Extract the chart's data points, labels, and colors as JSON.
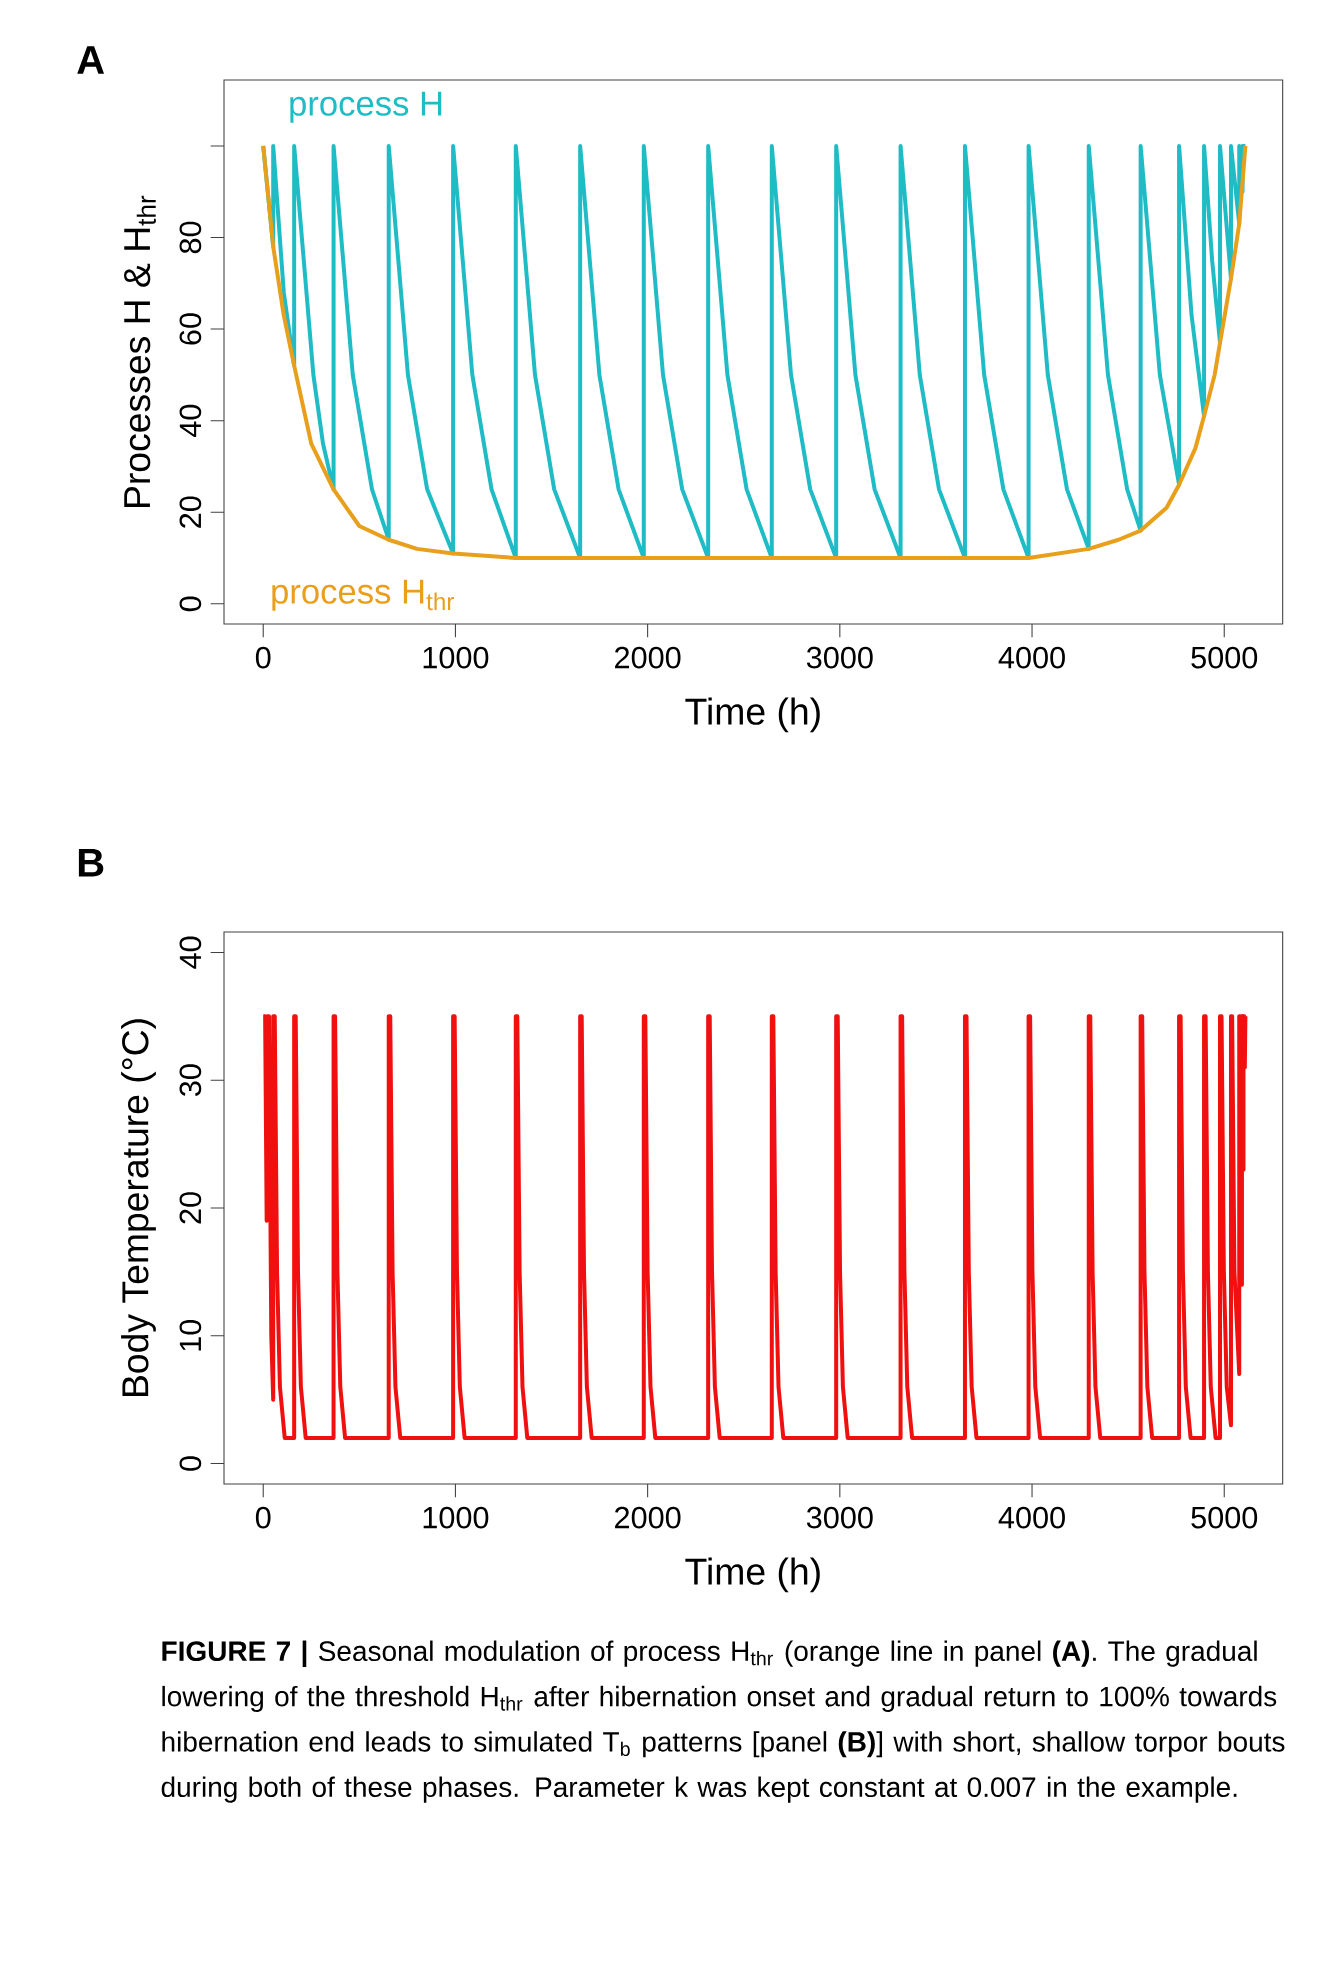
{
  "chart_data": [
    {
      "type": "line",
      "title": "A",
      "xlabel": "Time (h)",
      "ylabel": "Processes H & H$_{thr}$",
      "xlim": [
        -204,
        5304
      ],
      "xticks": [
        0,
        1000,
        2000,
        3000,
        4000,
        5000
      ],
      "ylim": [
        -4.4,
        114.4
      ],
      "yticks": [
        0,
        20,
        40,
        60,
        80,
        {
          "value": 100,
          "label": null
        }
      ],
      "series": [
        {
          "name": "process H",
          "color": "#1fbcc6",
          "x": [
            0,
            52,
            52,
            107,
            161,
            161,
            261,
            311,
            366,
            366,
            466,
            566,
            653,
            653,
            753,
            853,
            988,
            988,
            1088,
            1188,
            1314,
            1314,
            1414,
            1514,
            1649,
            1649,
            1749,
            1849,
            1980,
            1980,
            2080,
            2180,
            2315,
            2315,
            2415,
            2515,
            2646,
            2646,
            2746,
            2846,
            2981,
            2981,
            3081,
            3181,
            3316,
            3316,
            3416,
            3516,
            3651,
            3651,
            3751,
            3851,
            3982,
            3982,
            4082,
            4182,
            4295,
            4295,
            4395,
            4495,
            4565,
            4565,
            4665,
            4765,
            4765,
            4830,
            4895,
            4895,
            4937,
            4978,
            4978,
            5035,
            5035,
            5078,
            5078,
            5095,
            5095,
            5110
          ],
          "values": [
            100,
            78,
            100,
            68,
            52,
            100,
            50,
            35,
            25,
            100,
            50,
            25,
            14,
            100,
            50,
            25,
            11,
            100,
            50,
            25,
            10,
            100,
            50,
            25,
            10,
            100,
            50,
            25,
            10,
            100,
            50,
            25,
            10,
            100,
            50,
            25,
            10,
            100,
            50,
            25,
            10,
            100,
            50,
            25,
            10,
            100,
            50,
            25,
            10,
            100,
            50,
            25,
            10,
            100,
            50,
            25,
            12,
            100,
            50,
            25,
            16,
            100,
            50,
            26,
            100,
            63,
            41,
            100,
            75,
            57,
            100,
            71,
            100,
            83,
            100,
            90,
            100,
            100
          ]
        },
        {
          "name": "process H$_{thr}$",
          "color": "#e8a01c",
          "x": [
            0,
            52,
            107,
            161,
            250,
            366,
            500,
            653,
            800,
            988,
            1314,
            3651,
            3982,
            4295,
            4450,
            4565,
            4700,
            4765,
            4850,
            4895,
            4950,
            4978,
            5035,
            5078,
            5110
          ],
          "values": [
            100,
            78,
            63,
            52,
            35,
            25,
            17,
            14,
            12,
            11,
            10,
            10,
            10,
            12,
            14,
            16,
            21,
            26,
            34,
            41,
            50,
            57,
            71,
            83,
            100
          ]
        }
      ]
    },
    {
      "type": "line",
      "title": "B",
      "xlabel": "Time (h)",
      "ylabel": "Body Temperature (°C)",
      "xlim": [
        -204,
        5304
      ],
      "xticks": [
        0,
        1000,
        2000,
        3000,
        4000,
        5000
      ],
      "ylim": [
        -1.6,
        41.6
      ],
      "yticks": [
        0,
        10,
        20,
        30,
        40
      ],
      "annotations": [
        "**FIGURE 7 |** Seasonal modulation of process H$_{thr}$ (orange line in panel **(A)**. The gradual lowering of the threshold H$_{thr}$ after hibernation onset and gradual return to 100% towards hibernation end leads to simulated T$_{b}$ patterns [panel **(B)**] with short, shallow torpor bouts during both of these phases. Parameter k was kept constant at 0.007 in the example."
      ],
      "series": [
        {
          "color": "#f01010",
          "x": [
            0,
            10,
            18,
            22,
            30,
            42,
            52,
            52,
            60,
            72,
            87,
            112,
            161,
            161,
            169,
            181,
            196,
            221,
            366,
            366,
            374,
            386,
            401,
            426,
            653,
            653,
            661,
            673,
            688,
            713,
            988,
            988,
            996,
            1008,
            1023,
            1048,
            1314,
            1314,
            1322,
            1334,
            1349,
            1374,
            1649,
            1649,
            1657,
            1669,
            1684,
            1709,
            1980,
            1980,
            1988,
            2000,
            2015,
            2040,
            2315,
            2315,
            2323,
            2335,
            2350,
            2375,
            2646,
            2646,
            2654,
            2666,
            2681,
            2706,
            2981,
            2981,
            2989,
            3001,
            3016,
            3041,
            3316,
            3316,
            3324,
            3336,
            3351,
            3376,
            3651,
            3651,
            3659,
            3671,
            3686,
            3711,
            3982,
            3982,
            3990,
            4002,
            4017,
            4042,
            4295,
            4295,
            4303,
            4315,
            4330,
            4355,
            4565,
            4565,
            4573,
            4585,
            4600,
            4625,
            4765,
            4765,
            4773,
            4785,
            4800,
            4825,
            4895,
            4895,
            4903,
            4915,
            4930,
            4955,
            4978,
            4978,
            4986,
            4998,
            5013,
            5035,
            5035,
            5041,
            5053,
            5078,
            5078,
            5083,
            5092,
            5092,
            5096,
            5100,
            5100,
            5104,
            5107,
            5110
          ],
          "values": [
            35,
            35,
            19,
            35,
            35,
            10,
            5,
            35,
            35,
            15,
            6,
            2,
            2,
            35,
            35,
            15,
            6,
            2,
            2,
            35,
            35,
            15,
            6,
            2,
            2,
            35,
            35,
            15,
            6,
            2,
            2,
            35,
            35,
            15,
            6,
            2,
            2,
            35,
            35,
            15,
            6,
            2,
            2,
            35,
            35,
            15,
            6,
            2,
            2,
            35,
            35,
            15,
            6,
            2,
            2,
            35,
            35,
            15,
            6,
            2,
            2,
            35,
            35,
            15,
            6,
            2,
            2,
            35,
            35,
            15,
            6,
            2,
            2,
            35,
            35,
            15,
            6,
            2,
            2,
            35,
            35,
            15,
            6,
            2,
            2,
            35,
            35,
            15,
            6,
            2,
            2,
            35,
            35,
            15,
            6,
            2,
            2,
            35,
            35,
            15,
            6,
            2,
            2,
            35,
            35,
            15,
            6,
            2,
            2,
            35,
            35,
            15,
            6,
            2,
            2,
            35,
            35,
            15,
            6,
            3,
            35,
            35,
            15,
            7,
            35,
            35,
            14,
            35,
            35,
            23,
            35,
            35,
            31,
            35
          ]
        }
      ]
    }
  ]
}
